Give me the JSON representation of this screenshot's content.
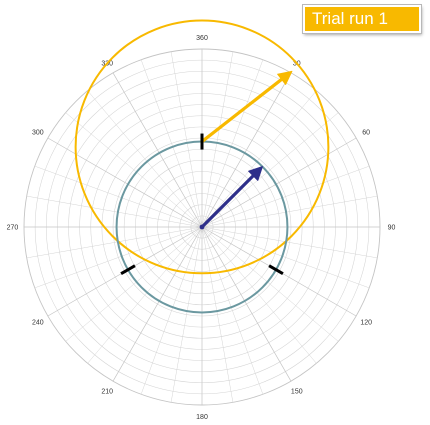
{
  "title": "Trial run 1",
  "chart_data": {
    "type": "polar",
    "title": "Trial run 1",
    "angle_ticks": [
      {
        "value": 0,
        "label": "360"
      },
      {
        "value": 30,
        "label": "30"
      },
      {
        "value": 60,
        "label": "60"
      },
      {
        "value": 90,
        "label": "90"
      },
      {
        "value": 120,
        "label": "120"
      },
      {
        "value": 150,
        "label": "150"
      },
      {
        "value": 180,
        "label": "180"
      },
      {
        "value": 210,
        "label": "210"
      },
      {
        "value": 240,
        "label": "240"
      },
      {
        "value": 270,
        "label": "270"
      },
      {
        "value": 300,
        "label": "300"
      },
      {
        "value": 330,
        "label": "330"
      }
    ],
    "angle_direction": "clockwise",
    "zero_position": "top",
    "radius_max": 1.0,
    "grid": true,
    "circles": [
      {
        "name": "circle-yellow",
        "center_angle": 0,
        "center_radius": 0.45,
        "radius": 0.71,
        "color": "#f8b900"
      },
      {
        "name": "circle-teal",
        "center_angle": 0,
        "center_radius": 0,
        "radius": 0.48,
        "color": "#6b98a0"
      }
    ],
    "vectors": [
      {
        "name": "vector-yellow",
        "from_angle": 0,
        "from_radius": 0.48,
        "to_angle": 30,
        "to_radius": 1.01,
        "color": "#f8b900"
      },
      {
        "name": "vector-navy",
        "from_angle": 0,
        "from_radius": 0,
        "to_angle": 45,
        "to_radius": 0.48,
        "color": "#2e2f8a"
      }
    ],
    "markers": [
      {
        "name": "marker-top",
        "angle": 0,
        "radius": 0.48
      },
      {
        "name": "marker-right",
        "angle": 120,
        "radius": 0.48
      },
      {
        "name": "marker-left",
        "angle": 240,
        "radius": 0.48
      }
    ],
    "colors": {
      "grid": "#d4d4d4",
      "grid_major": "#c4c4c4",
      "label": "#333333",
      "marker": "#000000",
      "badge": "#f8b900"
    }
  }
}
